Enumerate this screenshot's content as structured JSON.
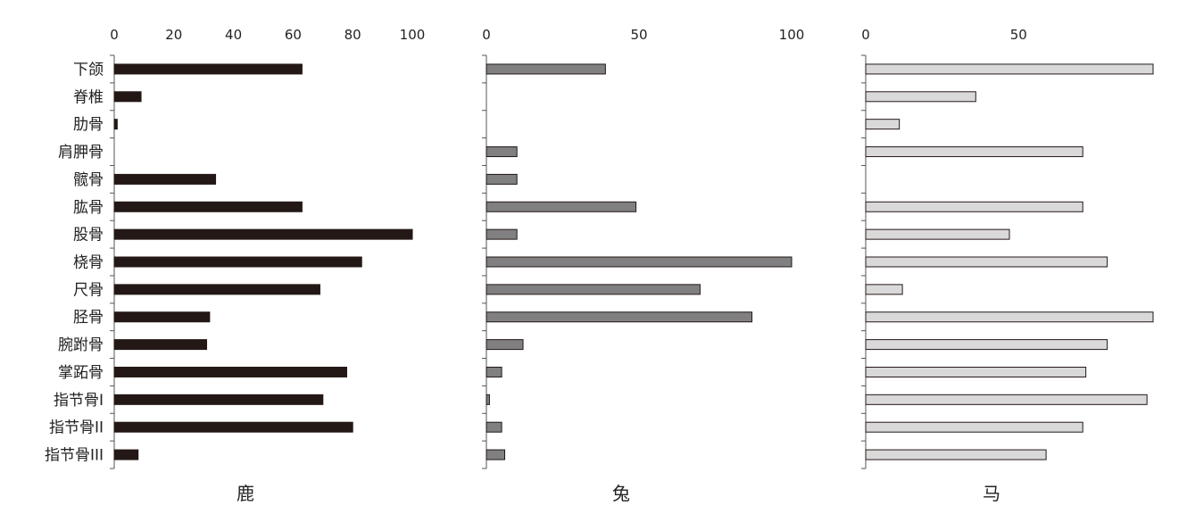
{
  "chart_data": {
    "type": "bar",
    "orientation": "horizontal",
    "categories": [
      "下颌",
      "脊椎",
      "肋骨",
      "肩胛骨",
      "髋骨",
      "肱骨",
      "股骨",
      "桡骨",
      "尺骨",
      "胫骨",
      "腕跗骨",
      "掌跖骨",
      "指节骨I",
      "指节骨II",
      "指节骨III"
    ],
    "panels": [
      {
        "title": "鹿",
        "xlim": [
          0,
          100
        ],
        "ticks": [
          "0",
          "20",
          "40",
          "60",
          "80",
          "100"
        ],
        "tick_values": [
          0,
          20,
          40,
          60,
          80,
          100
        ],
        "values": [
          63,
          9,
          1,
          0,
          34,
          63,
          100,
          83,
          69,
          32,
          31,
          78,
          70,
          80,
          8
        ],
        "color": "#231815"
      },
      {
        "title": "兔",
        "xlim": [
          0,
          100
        ],
        "ticks": [
          "0",
          "50",
          "100"
        ],
        "tick_values": [
          0,
          50,
          100
        ],
        "values": [
          39,
          0,
          0,
          10,
          10,
          49,
          10,
          100,
          70,
          87,
          12,
          5,
          1,
          5,
          6
        ],
        "color": "#808080"
      },
      {
        "title": "马",
        "xlim": [
          0,
          94
        ],
        "ticks": [
          "0",
          "50"
        ],
        "tick_values": [
          0,
          50
        ],
        "values": [
          94,
          36,
          11,
          71,
          0,
          71,
          47,
          79,
          12,
          94,
          79,
          72,
          92,
          71,
          59
        ],
        "color": "#d9d9d9"
      }
    ]
  }
}
